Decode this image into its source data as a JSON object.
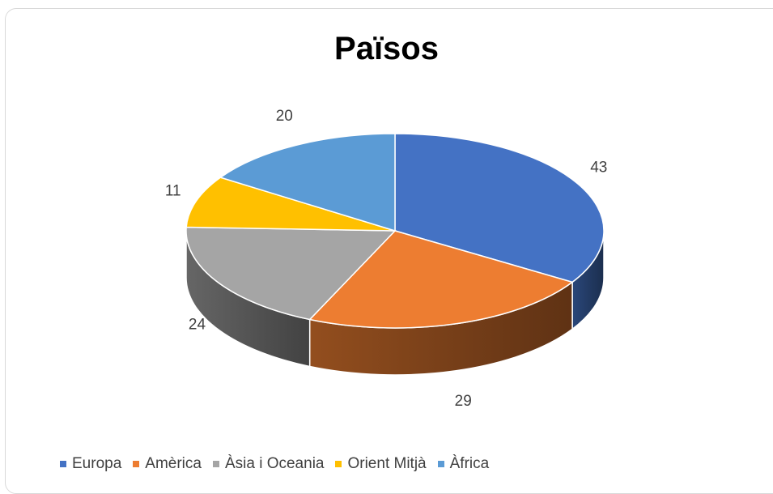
{
  "chart_data": {
    "type": "pie",
    "title": "Països",
    "categories": [
      "Europa",
      "Amèrica",
      "Àsia i Oceania",
      "Orient Mitjà",
      "Àfrica"
    ],
    "values": [
      43,
      29,
      24,
      11,
      20
    ],
    "colors": [
      "#4472C4",
      "#ED7D31",
      "#A5A5A5",
      "#FFC000",
      "#5B9BD5"
    ],
    "legend_position": "bottom",
    "three_d": true
  }
}
